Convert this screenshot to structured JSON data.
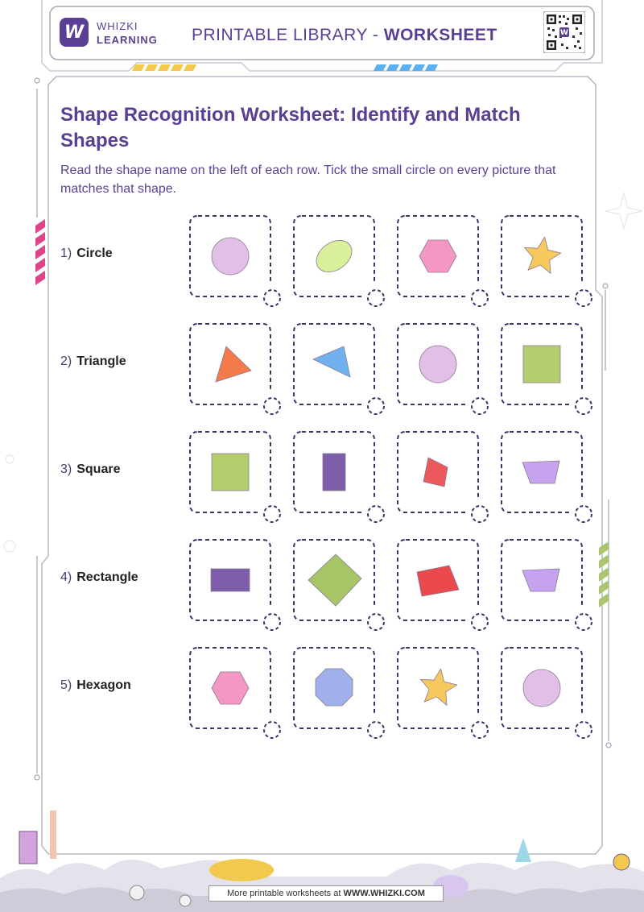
{
  "header": {
    "logo_mark": "W",
    "logo_line1": "WHIZKI",
    "logo_line2": "LEARNING",
    "title_prefix": "PRINTABLE LIBRARY - ",
    "title_bold": "WORKSHEET",
    "qr_icon": "qr-code-icon"
  },
  "worksheet": {
    "title": "Shape Recognition Worksheet: Identify and Match Shapes",
    "instructions": "Read the shape name on the left of each row. Tick the small circle on every picture that matches that shape."
  },
  "rows": [
    {
      "number": "1)",
      "name": "Circle",
      "options": [
        {
          "shape": "circle",
          "color": "#e1bfe6"
        },
        {
          "shape": "ellipse",
          "color": "#d9ef9a"
        },
        {
          "shape": "hexagon",
          "color": "#f497c4"
        },
        {
          "shape": "star",
          "color": "#f7c85e"
        }
      ]
    },
    {
      "number": "2)",
      "name": "Triangle",
      "options": [
        {
          "shape": "triangle",
          "color": "#f47a4a"
        },
        {
          "shape": "triangle-tilted",
          "color": "#6fb2ee"
        },
        {
          "shape": "circle",
          "color": "#e1bfe6"
        },
        {
          "shape": "square",
          "color": "#b3cd6e"
        }
      ]
    },
    {
      "number": "3)",
      "name": "Square",
      "options": [
        {
          "shape": "square",
          "color": "#b3cd6e"
        },
        {
          "shape": "rectangle-tall",
          "color": "#7e5dab"
        },
        {
          "shape": "quadrilateral",
          "color": "#ea5a5c"
        },
        {
          "shape": "trapezoid",
          "color": "#c6a3ee"
        }
      ]
    },
    {
      "number": "4)",
      "name": "Rectangle",
      "options": [
        {
          "shape": "rectangle",
          "color": "#7e5dab"
        },
        {
          "shape": "diamond",
          "color": "#a5c566"
        },
        {
          "shape": "parallelogram",
          "color": "#ea4a4e"
        },
        {
          "shape": "trapezoid",
          "color": "#c6a3ee"
        }
      ]
    },
    {
      "number": "5)",
      "name": "Hexagon",
      "options": [
        {
          "shape": "hexagon",
          "color": "#f497c4"
        },
        {
          "shape": "octagon",
          "color": "#9fb0ea"
        },
        {
          "shape": "star",
          "color": "#f7c85e"
        },
        {
          "shape": "circle",
          "color": "#e1bfe6"
        }
      ]
    }
  ],
  "footer": {
    "prefix": "More printable worksheets at ",
    "link": "WWW.WHIZKI.COM"
  },
  "colors": {
    "brand": "#5b3f94",
    "dash": "#3d3566",
    "stripe_yellow": "#f2c94c",
    "stripe_blue": "#5ab0e8",
    "stripe_pink": "#e0458a",
    "stripe_green": "#a9c66a"
  }
}
